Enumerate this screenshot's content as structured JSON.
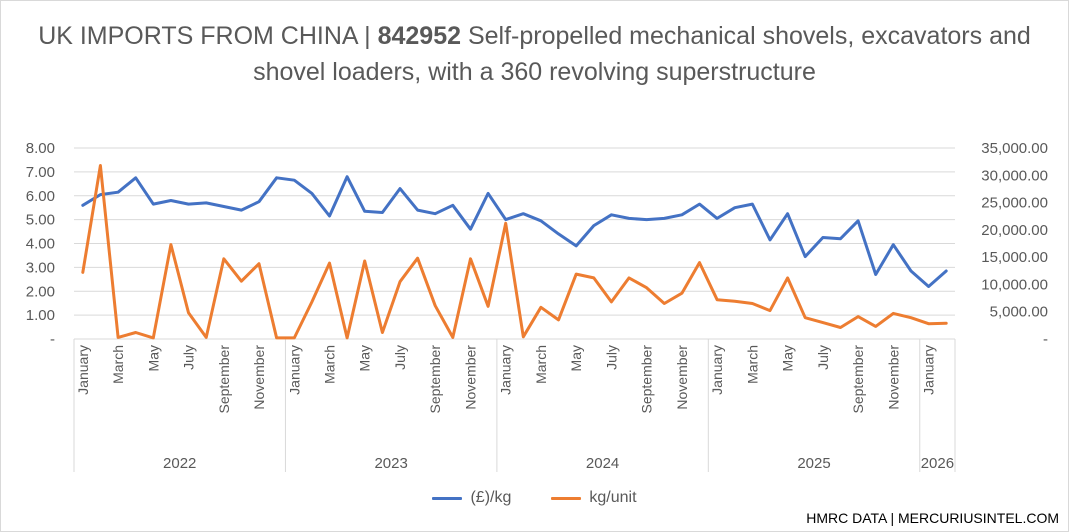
{
  "title": {
    "prefix": "UK IMPORTS FROM CHINA | ",
    "code": "842952",
    "rest": " Self-propelled mechanical shovels, excavators and shovel loaders, with a 360 revolving superstructure"
  },
  "source": "HMRC DATA | MERCURIUSINTEL.COM",
  "colors": {
    "series1": "#4472c4",
    "series2": "#ed7d31",
    "grid": "#d9d9d9",
    "text": "#595959"
  },
  "chart_data": {
    "type": "line",
    "x_month_labels": [
      "January",
      "",
      "March",
      "",
      "May",
      "",
      "July",
      "",
      "September",
      "",
      "November",
      "",
      "January",
      "",
      "March",
      "",
      "May",
      "",
      "July",
      "",
      "September",
      "",
      "November",
      "",
      "January",
      "",
      "March",
      "",
      "May",
      "",
      "July",
      "",
      "September",
      "",
      "November",
      "",
      "January",
      "",
      "March",
      "",
      "May",
      "",
      "July",
      "",
      "September",
      "",
      "November",
      "",
      "January",
      ""
    ],
    "year_groups": [
      {
        "label": "2022",
        "months": 12
      },
      {
        "label": "2023",
        "months": 12
      },
      {
        "label": "2024",
        "months": 12
      },
      {
        "label": "2025",
        "months": 12
      },
      {
        "label": "2026",
        "months": 2
      }
    ],
    "y_left": {
      "min": 0,
      "max": 8,
      "ticks": [
        "-",
        "1.00",
        "2.00",
        "3.00",
        "4.00",
        "5.00",
        "6.00",
        "7.00",
        "8.00"
      ]
    },
    "y_right": {
      "min": 0,
      "max": 35000,
      "ticks": [
        "-",
        "5,000.00",
        "10,000.00",
        "15,000.00",
        "20,000.00",
        "25,000.00",
        "30,000.00",
        "35,000.00"
      ]
    },
    "legend_position": "bottom",
    "series": [
      {
        "name": "(£)/kg",
        "axis": "left",
        "values": [
          5.6,
          6.05,
          6.15,
          6.75,
          5.65,
          5.8,
          5.65,
          5.7,
          5.55,
          5.4,
          5.75,
          6.75,
          6.65,
          6.1,
          5.15,
          6.8,
          5.35,
          5.3,
          6.3,
          5.4,
          5.25,
          5.6,
          4.6,
          6.1,
          5.0,
          5.25,
          4.95,
          4.4,
          3.9,
          4.75,
          5.2,
          5.05,
          5.0,
          5.05,
          5.2,
          5.65,
          5.05,
          5.5,
          5.65,
          4.15,
          5.25,
          3.45,
          4.25,
          4.2,
          4.95,
          2.7,
          3.95,
          2.85,
          2.2,
          2.85
        ]
      },
      {
        "name": "kg/unit",
        "axis": "right",
        "values": [
          12200,
          31800,
          300,
          1200,
          200,
          17300,
          4800,
          300,
          14700,
          10600,
          13800,
          200,
          200,
          6800,
          13900,
          200,
          14300,
          1200,
          10500,
          14800,
          6100,
          300,
          14700,
          6000,
          21200,
          400,
          5800,
          3500,
          11900,
          11200,
          6800,
          11200,
          9400,
          6500,
          8400,
          14000,
          7200,
          6900,
          6500,
          5200,
          11200,
          3900,
          3000,
          2100,
          4100,
          2300,
          4700,
          3900,
          2800,
          2900
        ]
      }
    ]
  }
}
